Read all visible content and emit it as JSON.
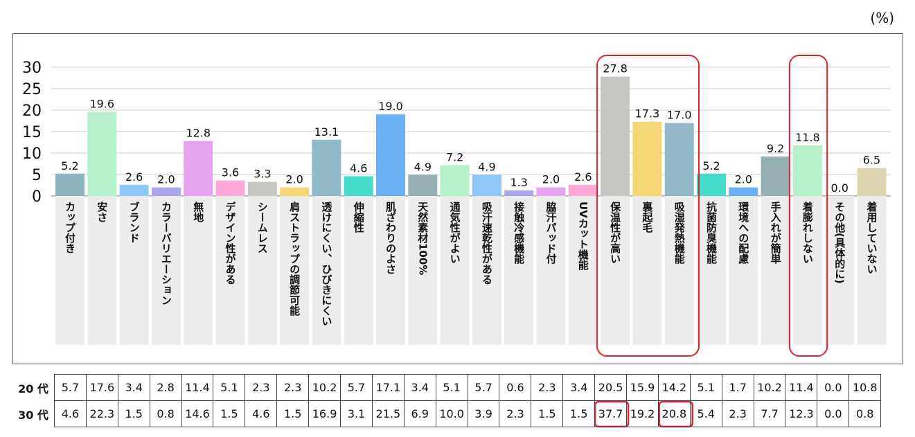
{
  "unit": "(%)",
  "chart_data": {
    "type": "bar",
    "ylim": [
      0,
      30
    ],
    "yticks": [
      "0",
      "5",
      "10",
      "15",
      "20",
      "25",
      "30"
    ],
    "grid": true,
    "categories": [
      "カップ付き",
      "安さ",
      "ブランド",
      "カラーバリエーション",
      "無地",
      "デザイン性がある",
      "シームレス",
      "肩ストラップの調節可能",
      "透けにくい、ひびきにくい",
      "伸縮性",
      "肌ざわりのよさ",
      "天然素材100%",
      "通気性がよい",
      "吸汗速乾性がある",
      "接触冷感機能",
      "脇汗パッド付",
      "UVカット機能",
      "保温性が高い",
      "裏起毛",
      "吸湿発熱機能",
      "抗菌防臭機能",
      "環境への配慮",
      "手入れが簡単",
      "着膨れしない",
      "その他(具体的に)",
      "着用していない"
    ],
    "values": [
      5.2,
      19.6,
      2.6,
      2.0,
      12.8,
      3.6,
      3.3,
      2.0,
      13.1,
      4.6,
      19.0,
      4.9,
      7.2,
      4.9,
      1.3,
      2.0,
      2.6,
      27.8,
      17.3,
      17.0,
      5.2,
      2.0,
      9.2,
      11.8,
      0.0,
      6.5
    ],
    "value_labels": [
      "5.2",
      "19.6",
      "2.6",
      "2.0",
      "12.8",
      "3.6",
      "3.3",
      "2.0",
      "13.1",
      "4.6",
      "19.0",
      "4.9",
      "7.2",
      "4.9",
      "1.3",
      "2.0",
      "2.6",
      "27.8",
      "17.3",
      "17.0",
      "5.2",
      "2.0",
      "9.2",
      "11.8",
      "0.0",
      "6.5"
    ],
    "colors": [
      "#8fb3bc",
      "#b7f0cc",
      "#8ec7f7",
      "#a9a6ee",
      "#e4a2ef",
      "#f9a8d8",
      "#c6c6c2",
      "#f4d774",
      "#91b9c8",
      "#45ddca",
      "#6ab2f4",
      "#95b1b3",
      "#b6f1cb",
      "#8ec7f7",
      "#a9a6ee",
      "#e4a2ef",
      "#f9a8d8",
      "#c6c6c2",
      "#f4d774",
      "#91b9c8",
      "#45ddca",
      "#6ab2f4",
      "#95b1b3",
      "#b6f1cb",
      "#e4a2ef",
      "#ddd5b1"
    ],
    "highlight_color": "#dd2233",
    "highlight_groups": [
      [
        17,
        19
      ],
      [
        23,
        23
      ]
    ],
    "table": {
      "rows": [
        {
          "label": "20 代",
          "values": [
            "5.7",
            "17.6",
            "3.4",
            "2.8",
            "11.4",
            "5.1",
            "2.3",
            "2.3",
            "10.2",
            "5.7",
            "17.1",
            "3.4",
            "5.1",
            "5.7",
            "0.6",
            "2.3",
            "3.4",
            "20.5",
            "15.9",
            "14.2",
            "5.1",
            "1.7",
            "10.2",
            "11.4",
            "0.0",
            "10.8"
          ]
        },
        {
          "label": "30 代",
          "values": [
            "4.6",
            "22.3",
            "1.5",
            "0.8",
            "14.6",
            "1.5",
            "4.6",
            "1.5",
            "16.9",
            "3.1",
            "21.5",
            "6.9",
            "10.0",
            "3.9",
            "2.3",
            "1.5",
            "1.5",
            "37.7",
            "19.2",
            "20.8",
            "5.4",
            "2.3",
            "7.7",
            "12.3",
            "0.0",
            "0.8"
          ]
        }
      ],
      "highlighted_cells": [
        [
          1,
          17
        ],
        [
          1,
          19
        ]
      ]
    }
  }
}
